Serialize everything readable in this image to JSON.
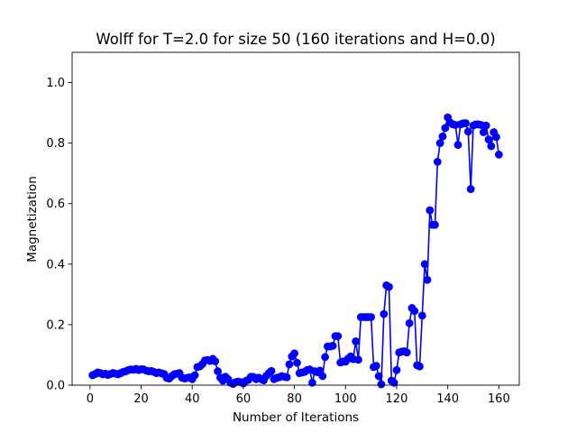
{
  "chart_data": {
    "type": "line",
    "title": "Wolff for T=2.0 for size 50 (160 iterations and H=0.0)",
    "xlabel": "Number of Iterations",
    "ylabel": "Magnetization",
    "xlim": [
      -7,
      168
    ],
    "ylim": [
      0.0,
      1.1
    ],
    "x_ticks": [
      0,
      20,
      40,
      60,
      80,
      100,
      120,
      140,
      160
    ],
    "y_ticks": [
      0.0,
      0.2,
      0.4,
      0.6,
      0.8,
      1.0
    ],
    "x_tick_labels": [
      "0",
      "20",
      "40",
      "60",
      "80",
      "100",
      "120",
      "140",
      "160"
    ],
    "y_tick_labels": [
      "0.0",
      "0.2",
      "0.4",
      "0.6",
      "0.8",
      "1.0"
    ],
    "grid": false,
    "legend": "none",
    "series": [
      {
        "color": "#0000ff",
        "marker": "circle",
        "x": [
          1,
          2,
          3,
          4,
          5,
          6,
          7,
          8,
          9,
          10,
          11,
          12,
          13,
          14,
          15,
          16,
          17,
          18,
          19,
          20,
          21,
          22,
          23,
          24,
          25,
          26,
          27,
          28,
          29,
          30,
          31,
          32,
          33,
          34,
          35,
          36,
          37,
          38,
          39,
          40,
          41,
          42,
          43,
          44,
          45,
          46,
          47,
          48,
          49,
          50,
          51,
          52,
          53,
          54,
          55,
          56,
          57,
          58,
          59,
          60,
          61,
          62,
          63,
          64,
          65,
          66,
          67,
          68,
          69,
          70,
          71,
          72,
          73,
          74,
          75,
          76,
          77,
          78,
          79,
          80,
          81,
          82,
          83,
          84,
          85,
          86,
          87,
          88,
          89,
          90,
          91,
          92,
          93,
          94,
          95,
          96,
          97,
          98,
          99,
          100,
          101,
          102,
          103,
          104,
          105,
          106,
          107,
          108,
          109,
          110,
          111,
          112,
          113,
          114,
          115,
          116,
          117,
          118,
          119,
          120,
          121,
          122,
          123,
          124,
          125,
          126,
          127,
          128,
          129,
          130,
          131,
          132,
          133,
          134,
          135,
          136,
          137,
          138,
          139,
          140,
          141,
          142,
          143,
          144,
          145,
          146,
          147,
          148,
          149,
          150,
          151,
          152,
          153,
          154,
          155,
          156,
          157,
          158,
          159,
          160
        ],
        "y": [
          0.033,
          0.037,
          0.042,
          0.04,
          0.036,
          0.038,
          0.034,
          0.037,
          0.04,
          0.038,
          0.036,
          0.04,
          0.044,
          0.046,
          0.05,
          0.052,
          0.051,
          0.054,
          0.05,
          0.053,
          0.052,
          0.048,
          0.046,
          0.047,
          0.044,
          0.04,
          0.042,
          0.039,
          0.037,
          0.024,
          0.022,
          0.03,
          0.036,
          0.038,
          0.04,
          0.025,
          0.022,
          0.024,
          0.026,
          0.02,
          0.033,
          0.06,
          0.062,
          0.07,
          0.082,
          0.083,
          0.08,
          0.087,
          0.079,
          0.046,
          0.025,
          0.015,
          0.028,
          0.02,
          0.008,
          0.004,
          0.01,
          0.012,
          0.01,
          0.006,
          0.014,
          0.018,
          0.028,
          0.027,
          0.02,
          0.025,
          0.02,
          0.016,
          0.031,
          0.04,
          0.047,
          0.02,
          0.024,
          0.026,
          0.03,
          0.028,
          0.026,
          0.069,
          0.095,
          0.105,
          0.074,
          0.04,
          0.042,
          0.044,
          0.05,
          0.052,
          0.008,
          0.046,
          0.043,
          0.048,
          0.03,
          0.093,
          0.128,
          0.128,
          0.13,
          0.162,
          0.162,
          0.075,
          0.078,
          0.078,
          0.088,
          0.095,
          0.086,
          0.145,
          0.084,
          0.225,
          0.225,
          0.225,
          0.225,
          0.225,
          0.06,
          0.064,
          0.03,
          0.003,
          0.235,
          0.33,
          0.325,
          0.015,
          0.008,
          0.05,
          0.108,
          0.111,
          0.112,
          0.108,
          0.205,
          0.255,
          0.245,
          0.066,
          0.062,
          0.23,
          0.4,
          0.348,
          0.578,
          0.53,
          0.53,
          0.738,
          0.8,
          0.822,
          0.85,
          0.885,
          0.868,
          0.862,
          0.86,
          0.794,
          0.862,
          0.865,
          0.866,
          0.838,
          0.648,
          0.858,
          0.862,
          0.862,
          0.86,
          0.836,
          0.858,
          0.812,
          0.79,
          0.836,
          0.82,
          0.762
        ]
      }
    ]
  }
}
